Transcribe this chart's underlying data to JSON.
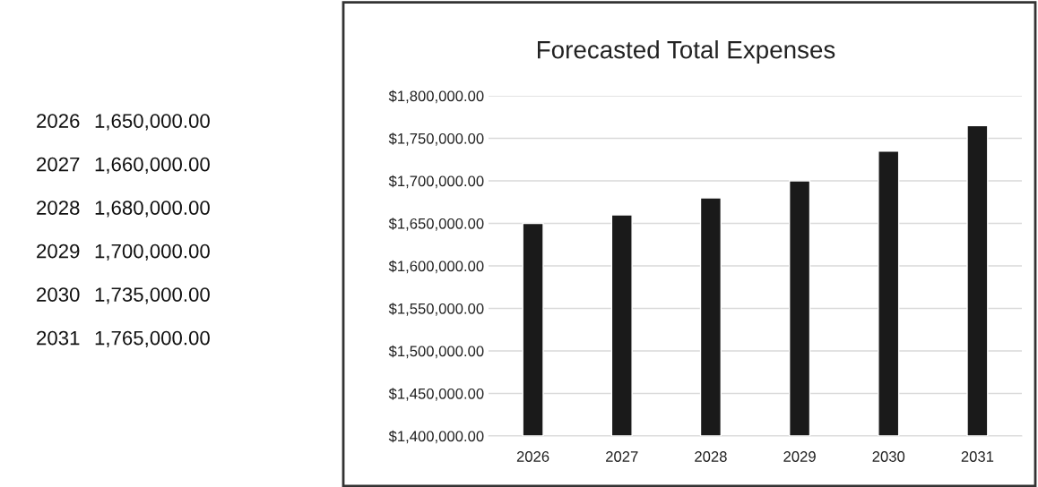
{
  "chart_data": {
    "type": "bar",
    "title": "Forecasted Total Expenses",
    "categories": [
      "2026",
      "2027",
      "2028",
      "2029",
      "2030",
      "2031"
    ],
    "values": [
      1650000,
      1660000,
      1680000,
      1700000,
      1735000,
      1765000
    ],
    "annotations": [
      "2026",
      "1,650,000.00",
      "2027",
      "1,660,000.00",
      "2028",
      "1,680,000.00",
      "2029",
      "1,700,000.00",
      "2030",
      "1,735,000.00",
      "2031",
      "1,765,000.00"
    ],
    "color": "#1a1a1a",
    "ylim": [
      1400000,
      1800000
    ],
    "yticks": [
      {
        "value": 1400000,
        "label": "$1,400,000.00"
      },
      {
        "value": 1450000,
        "label": "$1,450,000.00"
      },
      {
        "value": 1500000,
        "label": "$1,500,000.00"
      },
      {
        "value": 1550000,
        "label": "$1,550,000.00"
      },
      {
        "value": 1600000,
        "label": "$1,600,000.00"
      },
      {
        "value": 1650000,
        "label": "$1,650,000.00"
      },
      {
        "value": 1700000,
        "label": "$1,700,000.00"
      },
      {
        "value": 1750000,
        "label": "$1,750,000.00"
      },
      {
        "value": 1800000,
        "label": "$1,800,000.00"
      }
    ],
    "grid": "y",
    "legend": false
  }
}
